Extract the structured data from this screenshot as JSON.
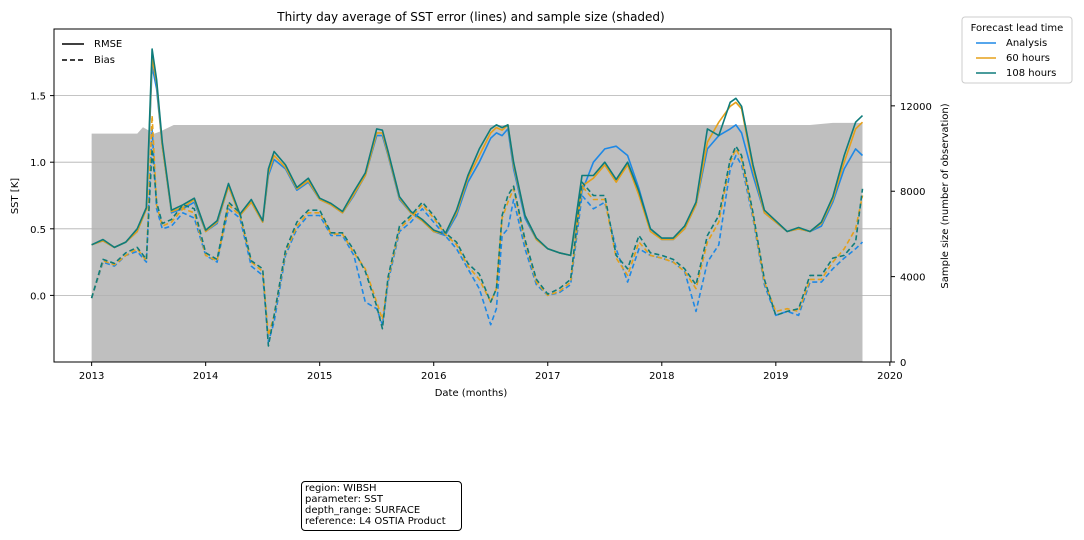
{
  "chart_data": {
    "type": "line",
    "title": "Thirty day average of SST error (lines) and sample size (shaded)",
    "xlabel": "Date (months)",
    "ylabel": "SST [K]",
    "y2label": "Sample size (number of observation)",
    "xlim": [
      2012.67,
      2020.01
    ],
    "ylim": [
      -0.5,
      2.0
    ],
    "y2lim": [
      0,
      15600
    ],
    "xticks": [
      "2013",
      "2014",
      "2015",
      "2016",
      "2017",
      "2018",
      "2019",
      "2020"
    ],
    "yticks": [
      "0.0",
      "0.5",
      "1.0",
      "1.5"
    ],
    "y2ticks": [
      "0",
      "4000",
      "8000",
      "12000"
    ],
    "grid": "y-major",
    "style_legend": {
      "placement": "top-left",
      "entries": [
        {
          "label": "RMSE",
          "style": "solid"
        },
        {
          "label": "Bias",
          "style": "dashed"
        }
      ]
    },
    "series_legend": {
      "title": "Forecast lead time",
      "placement": "outside-right",
      "entries": [
        {
          "label": "Analysis",
          "color": "#1e88e5"
        },
        {
          "label": "60 hours",
          "color": "#e5a01a"
        },
        {
          "label": "108 hours",
          "color": "#0e7c7b"
        }
      ]
    },
    "sample_size": {
      "color": "#bfbfbf",
      "x": [
        2013.0,
        2013.4,
        2013.45,
        2013.55,
        2013.6,
        2013.72,
        2019.3,
        2019.5,
        2019.76
      ],
      "y": [
        10700,
        10700,
        11000,
        10700,
        10800,
        11100,
        11100,
        11200,
        11200
      ]
    },
    "x": [
      2013.0,
      2013.1,
      2013.2,
      2013.3,
      2013.4,
      2013.48,
      2013.53,
      2013.57,
      2013.62,
      2013.7,
      2013.8,
      2013.9,
      2014.0,
      2014.1,
      2014.2,
      2014.3,
      2014.4,
      2014.5,
      2014.55,
      2014.6,
      2014.7,
      2014.8,
      2014.9,
      2015.0,
      2015.1,
      2015.2,
      2015.3,
      2015.4,
      2015.5,
      2015.55,
      2015.6,
      2015.7,
      2015.8,
      2015.9,
      2016.0,
      2016.1,
      2016.2,
      2016.3,
      2016.4,
      2016.5,
      2016.55,
      2016.6,
      2016.65,
      2016.7,
      2016.8,
      2016.9,
      2017.0,
      2017.1,
      2017.2,
      2017.3,
      2017.4,
      2017.5,
      2017.6,
      2017.7,
      2017.8,
      2017.9,
      2018.0,
      2018.1,
      2018.2,
      2018.3,
      2018.4,
      2018.5,
      2018.6,
      2018.65,
      2018.7,
      2018.8,
      2018.9,
      2019.0,
      2019.1,
      2019.2,
      2019.3,
      2019.4,
      2019.5,
      2019.6,
      2019.7,
      2019.76
    ],
    "series": [
      {
        "name": "Analysis",
        "metric": "RMSE",
        "color": "#1e88e5",
        "dash": "solid",
        "values": [
          0.38,
          0.41,
          0.36,
          0.4,
          0.48,
          0.65,
          1.72,
          1.55,
          1.12,
          0.62,
          0.65,
          0.7,
          0.48,
          0.54,
          0.82,
          0.6,
          0.7,
          0.55,
          0.9,
          1.02,
          0.95,
          0.79,
          0.85,
          0.72,
          0.68,
          0.62,
          0.75,
          0.9,
          1.2,
          1.2,
          1.05,
          0.72,
          0.62,
          0.56,
          0.48,
          0.45,
          0.6,
          0.85,
          1.0,
          1.18,
          1.22,
          1.2,
          1.25,
          0.95,
          0.58,
          0.42,
          0.35,
          0.32,
          0.3,
          0.78,
          1.0,
          1.1,
          1.12,
          1.05,
          0.8,
          0.5,
          0.42,
          0.42,
          0.5,
          0.68,
          1.1,
          1.2,
          1.25,
          1.28,
          1.22,
          0.9,
          0.62,
          0.55,
          0.48,
          0.5,
          0.48,
          0.52,
          0.7,
          0.95,
          1.1,
          1.05
        ]
      },
      {
        "name": "60 hours",
        "metric": "RMSE",
        "color": "#e5a01a",
        "dash": "solid",
        "values": [
          0.38,
          0.41,
          0.36,
          0.4,
          0.48,
          0.65,
          1.78,
          1.6,
          1.12,
          0.63,
          0.66,
          0.72,
          0.48,
          0.55,
          0.82,
          0.6,
          0.7,
          0.55,
          0.92,
          1.05,
          0.96,
          0.8,
          0.86,
          0.72,
          0.68,
          0.62,
          0.76,
          0.9,
          1.22,
          1.22,
          1.06,
          0.73,
          0.62,
          0.56,
          0.48,
          0.46,
          0.62,
          0.88,
          1.05,
          1.22,
          1.26,
          1.24,
          1.28,
          0.98,
          0.6,
          0.42,
          0.35,
          0.32,
          0.3,
          0.82,
          0.88,
          0.98,
          0.85,
          0.98,
          0.75,
          0.48,
          0.42,
          0.42,
          0.5,
          0.68,
          1.15,
          1.3,
          1.42,
          1.45,
          1.4,
          0.95,
          0.62,
          0.55,
          0.48,
          0.5,
          0.48,
          0.54,
          0.72,
          1.0,
          1.25,
          1.3
        ]
      },
      {
        "name": "108 hours",
        "metric": "RMSE",
        "color": "#0e7c7b",
        "dash": "solid",
        "values": [
          0.38,
          0.42,
          0.36,
          0.4,
          0.5,
          0.66,
          1.85,
          1.62,
          1.15,
          0.64,
          0.68,
          0.73,
          0.49,
          0.56,
          0.84,
          0.61,
          0.72,
          0.56,
          0.95,
          1.08,
          0.98,
          0.81,
          0.88,
          0.73,
          0.69,
          0.63,
          0.78,
          0.92,
          1.25,
          1.24,
          1.08,
          0.74,
          0.63,
          0.57,
          0.49,
          0.46,
          0.64,
          0.9,
          1.1,
          1.25,
          1.28,
          1.26,
          1.28,
          1.0,
          0.6,
          0.43,
          0.35,
          0.32,
          0.3,
          0.9,
          0.9,
          1.0,
          0.87,
          1.0,
          0.78,
          0.5,
          0.43,
          0.43,
          0.52,
          0.7,
          1.25,
          1.2,
          1.45,
          1.48,
          1.42,
          0.98,
          0.64,
          0.56,
          0.48,
          0.51,
          0.48,
          0.55,
          0.74,
          1.05,
          1.3,
          1.35
        ]
      },
      {
        "name": "Analysis",
        "metric": "Bias",
        "color": "#1e88e5",
        "dash": "dashed",
        "values": [
          -0.02,
          0.25,
          0.22,
          0.3,
          0.33,
          0.25,
          1.25,
          0.65,
          0.5,
          0.52,
          0.62,
          0.58,
          0.3,
          0.25,
          0.65,
          0.58,
          0.22,
          0.15,
          -0.35,
          -0.2,
          0.3,
          0.5,
          0.6,
          0.6,
          0.45,
          0.45,
          0.3,
          -0.05,
          -0.1,
          -0.22,
          0.1,
          0.48,
          0.55,
          0.65,
          0.55,
          0.45,
          0.35,
          0.2,
          0.05,
          -0.22,
          -0.1,
          0.45,
          0.5,
          0.72,
          0.35,
          0.08,
          0.0,
          0.02,
          0.08,
          0.75,
          0.65,
          0.7,
          0.35,
          0.1,
          0.35,
          0.3,
          0.28,
          0.25,
          0.18,
          -0.12,
          0.25,
          0.38,
          0.95,
          1.05,
          0.98,
          0.58,
          0.08,
          -0.15,
          -0.12,
          -0.15,
          0.1,
          0.1,
          0.2,
          0.28,
          0.35,
          0.4
        ]
      },
      {
        "name": "60 hours",
        "metric": "Bias",
        "color": "#e5a01a",
        "dash": "dashed",
        "values": [
          -0.02,
          0.26,
          0.23,
          0.3,
          0.35,
          0.26,
          1.35,
          0.68,
          0.52,
          0.55,
          0.65,
          0.62,
          0.3,
          0.26,
          0.68,
          0.6,
          0.25,
          0.18,
          -0.3,
          -0.15,
          0.32,
          0.52,
          0.62,
          0.62,
          0.46,
          0.46,
          0.32,
          0.2,
          -0.05,
          -0.18,
          0.12,
          0.5,
          0.58,
          0.68,
          0.58,
          0.46,
          0.38,
          0.22,
          0.12,
          -0.05,
          0.05,
          0.58,
          0.7,
          0.8,
          0.4,
          0.1,
          0.0,
          0.03,
          0.1,
          0.82,
          0.72,
          0.72,
          0.28,
          0.15,
          0.4,
          0.3,
          0.28,
          0.25,
          0.18,
          0.05,
          0.4,
          0.55,
          1.0,
          1.1,
          1.02,
          0.6,
          0.1,
          -0.12,
          -0.1,
          -0.12,
          0.12,
          0.12,
          0.25,
          0.35,
          0.5,
          0.75
        ]
      },
      {
        "name": "108 hours",
        "metric": "Bias",
        "color": "#0e7c7b",
        "dash": "dashed",
        "values": [
          -0.02,
          0.27,
          0.24,
          0.32,
          0.36,
          0.27,
          1.1,
          0.7,
          0.54,
          0.57,
          0.68,
          0.65,
          0.32,
          0.27,
          0.7,
          0.62,
          0.26,
          0.2,
          -0.38,
          -0.15,
          0.34,
          0.55,
          0.64,
          0.64,
          0.47,
          0.47,
          0.34,
          0.18,
          -0.08,
          -0.25,
          0.14,
          0.52,
          0.6,
          0.7,
          0.6,
          0.47,
          0.4,
          0.24,
          0.16,
          -0.05,
          0.05,
          0.6,
          0.75,
          0.82,
          0.42,
          0.12,
          0.01,
          0.05,
          0.12,
          0.85,
          0.75,
          0.75,
          0.3,
          0.2,
          0.45,
          0.32,
          0.3,
          0.27,
          0.2,
          0.08,
          0.45,
          0.6,
          1.02,
          1.12,
          1.05,
          0.62,
          0.12,
          -0.15,
          -0.12,
          -0.1,
          0.15,
          0.15,
          0.28,
          0.3,
          0.4,
          0.8
        ]
      }
    ]
  },
  "info_box": {
    "lines": [
      "region: WIBSH",
      "parameter: SST",
      "depth_range: SURFACE",
      "reference: L4 OSTIA Product"
    ]
  }
}
